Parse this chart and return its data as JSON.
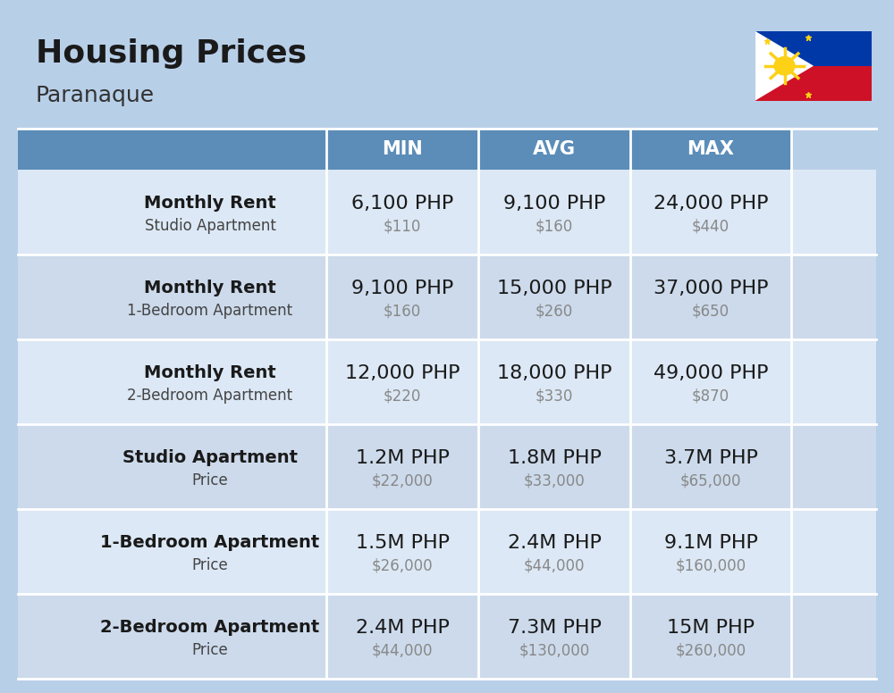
{
  "title": "Housing Prices",
  "subtitle": "Paranaque",
  "background_color": "#b8cfe8",
  "header_color": "#5b8db8",
  "row_colors": [
    "#dce8f5",
    "#ccdaeb"
  ],
  "header_text_color": "#ffffff",
  "col_headers": [
    "MIN",
    "AVG",
    "MAX"
  ],
  "rows": [
    {
      "icon_type": "studio_blue",
      "label_bold": "Monthly Rent",
      "label_sub": "Studio Apartment",
      "min_php": "6,100 PHP",
      "min_usd": "$110",
      "avg_php": "9,100 PHP",
      "avg_usd": "$160",
      "max_php": "24,000 PHP",
      "max_usd": "$440"
    },
    {
      "icon_type": "one_bed_orange",
      "label_bold": "Monthly Rent",
      "label_sub": "1-Bedroom Apartment",
      "min_php": "9,100 PHP",
      "min_usd": "$160",
      "avg_php": "15,000 PHP",
      "avg_usd": "$260",
      "max_php": "37,000 PHP",
      "max_usd": "$650"
    },
    {
      "icon_type": "two_bed_beige",
      "label_bold": "Monthly Rent",
      "label_sub": "2-Bedroom Apartment",
      "min_php": "12,000 PHP",
      "min_usd": "$220",
      "avg_php": "18,000 PHP",
      "avg_usd": "$330",
      "max_php": "49,000 PHP",
      "max_usd": "$870"
    },
    {
      "icon_type": "studio_blue",
      "label_bold": "Studio Apartment",
      "label_sub": "Price",
      "min_php": "1.2M PHP",
      "min_usd": "$22,000",
      "avg_php": "1.8M PHP",
      "avg_usd": "$33,000",
      "max_php": "3.7M PHP",
      "max_usd": "$65,000"
    },
    {
      "icon_type": "one_bed_orange",
      "label_bold": "1-Bedroom Apartment",
      "label_sub": "Price",
      "min_php": "1.5M PHP",
      "min_usd": "$26,000",
      "avg_php": "2.4M PHP",
      "avg_usd": "$44,000",
      "max_php": "9.1M PHP",
      "max_usd": "$160,000"
    },
    {
      "icon_type": "two_bed_brown",
      "label_bold": "2-Bedroom Apartment",
      "label_sub": "Price",
      "min_php": "2.4M PHP",
      "min_usd": "$44,000",
      "avg_php": "7.3M PHP",
      "avg_usd": "$130,000",
      "max_php": "15M PHP",
      "max_usd": "$260,000"
    }
  ],
  "php_fontsize": 16,
  "usd_fontsize": 12,
  "label_bold_fontsize": 14,
  "label_sub_fontsize": 12,
  "col_header_fontsize": 15
}
